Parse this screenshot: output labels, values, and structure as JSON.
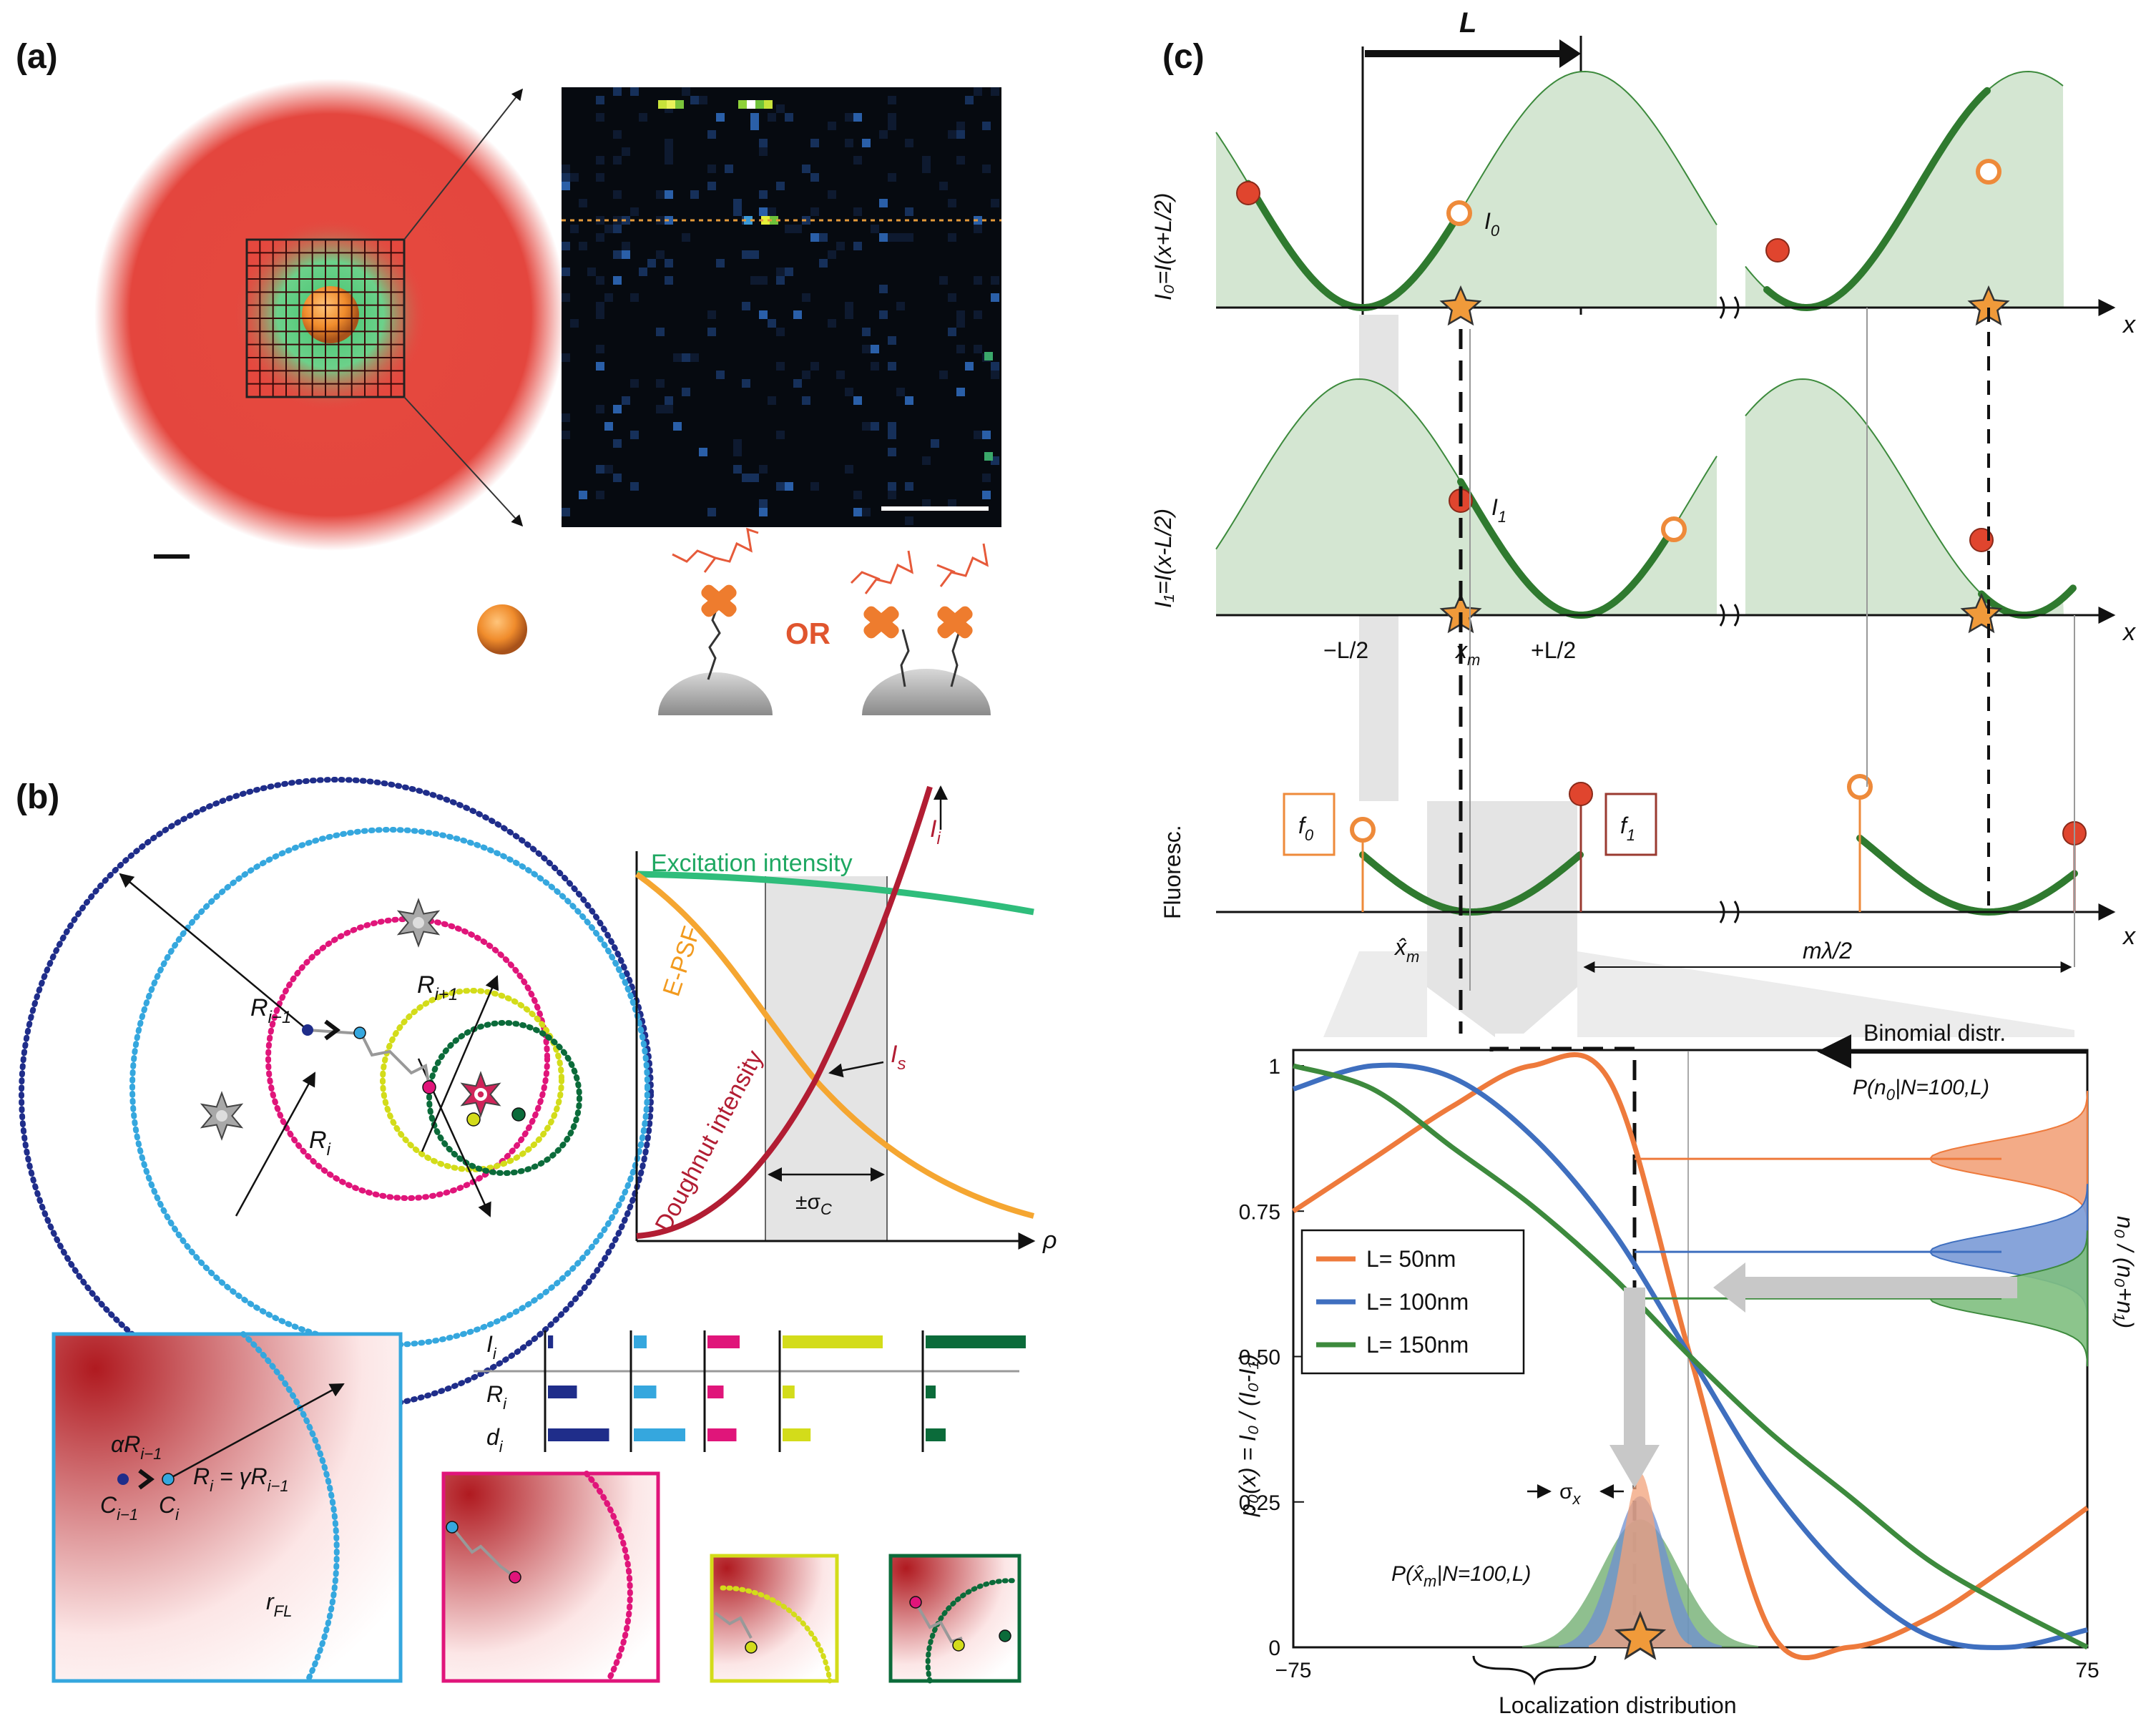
{
  "panels": {
    "a": {
      "label": "(a)",
      "or_text": "OR"
    },
    "b": {
      "label": "(b)",
      "labels": {
        "r_prev": "R",
        "r_prev_sub": "i−1",
        "r_i": "R",
        "r_i_sub": "i",
        "r_next": "R",
        "r_next_sub": "i+1"
      },
      "plot": {
        "excitation": "Excitation intensity",
        "epsf": "E-PSF",
        "doughnut": "Doughnut intensity",
        "li": "I",
        "li_sub": "i",
        "ls": "I",
        "ls_sub": "s",
        "sigma": "±σ",
        "sigma_sub": "C",
        "rho": "ρ"
      },
      "bars": {
        "row_labels": [
          "I",
          "R",
          "d"
        ],
        "row_sub": "i",
        "colors": [
          "#1f2d8a",
          "#35a7de",
          "#e0157a",
          "#d3dc1a",
          "#0b6b3a"
        ],
        "values": {
          "I": [
            0.08,
            0.2,
            0.5,
            1.0,
            1.0
          ],
          "R": [
            0.45,
            0.35,
            0.25,
            0.12,
            0.1
          ],
          "d": [
            0.95,
            0.8,
            0.45,
            0.28,
            0.2
          ]
        }
      },
      "zoom": {
        "alpha": "αR",
        "alpha_sub": "i−1",
        "ri_eq": "R",
        "ri_eq_sub": "i",
        "ri_eq_rest": " = γR",
        "ri_eq_rest_sub": "i−1",
        "c_prev": "C",
        "c_prev_sub": "i−1",
        "c_i": "C",
        "c_i_sub": "i",
        "r_fl": "r",
        "r_fl_sub": "FL"
      }
    },
    "c": {
      "label": "(c)",
      "L": "L",
      "row1": {
        "ylabel": "I₀=I(x+L/2)",
        "curve_label": "I",
        "curve_sub": "0",
        "x": "x"
      },
      "row2": {
        "ylabel": "I₁=I(x-L/2)",
        "curve_label": "I",
        "curve_sub": "1",
        "x": "x"
      },
      "ticks": {
        "minus": "−L/2",
        "xm": "x",
        "xm_sub": "m",
        "plus": "+L/2"
      },
      "row3": {
        "ylabel": "Fluoresc.",
        "f0": "f",
        "f0_sub": "0",
        "f1": "f",
        "f1_sub": "1",
        "xhat": "x̂",
        "xhat_sub": "m",
        "mlambda": "mλ/2",
        "x": "x"
      },
      "binomial": "Binomial distr.",
      "pn0": "P(n",
      "pn0_sub": "0",
      "pn0_rest": "|N=100,L)",
      "sigma_x": "σ",
      "sigma_x_sub": "x",
      "pxhat": "P(x̂",
      "pxhat_sub": "m",
      "pxhat_rest": "|N=100,L)",
      "loc_dist": "Localization distribution",
      "ylabel_left": "p₀(x) = I₀ / (I₀-I₁)",
      "ylabel_right": "n₀ / (n₀+n₁)"
    }
  },
  "chart_data": {
    "type": "line",
    "x": [
      -75,
      -60,
      -45,
      -30,
      -15,
      0,
      15,
      30,
      45,
      60,
      75
    ],
    "xlim": [
      -75,
      75
    ],
    "ylim": [
      0,
      1
    ],
    "yticks": [
      "0",
      "0.25",
      "0.50",
      "0.75",
      "1"
    ],
    "xticks": [
      "−75",
      "75"
    ],
    "legend_position": "center-left",
    "series": [
      {
        "name": "L= 50nm",
        "color": "#ee7a3c",
        "values": [
          0.75,
          0.84,
          0.93,
          1.0,
          0.97,
          0.5,
          0.03,
          0.0,
          0.05,
          0.14,
          0.24
        ]
      },
      {
        "name": "L= 100nm",
        "color": "#3f6fbf",
        "values": [
          0.96,
          1.0,
          0.98,
          0.88,
          0.72,
          0.5,
          0.28,
          0.12,
          0.02,
          0.0,
          0.03
        ]
      },
      {
        "name": "L= 150nm",
        "color": "#3d8a3d",
        "values": [
          1.0,
          0.96,
          0.86,
          0.76,
          0.64,
          0.5,
          0.37,
          0.26,
          0.15,
          0.07,
          0.0
        ]
      }
    ]
  }
}
